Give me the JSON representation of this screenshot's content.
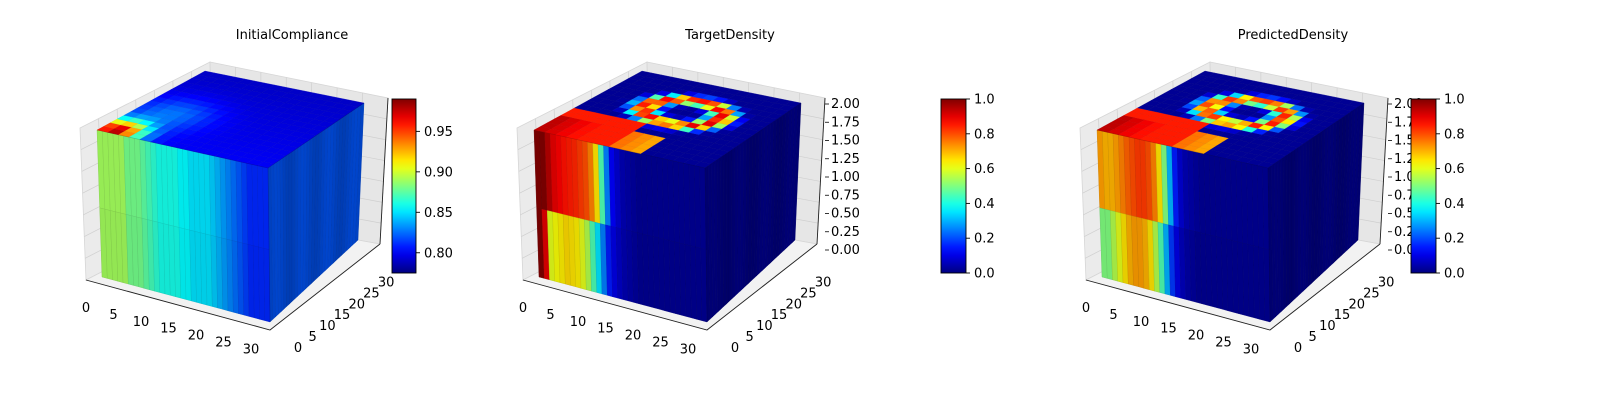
{
  "figure": {
    "panels": [
      {
        "id": "initial-compliance",
        "title": "InitialCompliance",
        "colorbar": {
          "min": 0.775,
          "max": 0.99,
          "ticks": [
            "0.80",
            "0.85",
            "0.90",
            "0.95"
          ],
          "tick_values": [
            0.8,
            0.85,
            0.9,
            0.95
          ]
        },
        "z_ticks_visible": false
      },
      {
        "id": "target-density",
        "title": "TargetDensity",
        "colorbar": {
          "min": 0.0,
          "max": 1.0,
          "ticks": [
            "0.0",
            "0.2",
            "0.4",
            "0.6",
            "0.8",
            "1.0"
          ],
          "tick_values": [
            0,
            0.2,
            0.4,
            0.6,
            0.8,
            1.0
          ]
        },
        "z_ticks_visible": true
      },
      {
        "id": "predicted-density",
        "title": "PredictedDensity",
        "colorbar": {
          "min": 0.0,
          "max": 1.0,
          "ticks": [
            "0.0",
            "0.2",
            "0.4",
            "0.6",
            "0.8",
            "1.0"
          ],
          "tick_values": [
            0,
            0.2,
            0.4,
            0.6,
            0.8,
            1.0
          ]
        },
        "z_ticks_visible": true
      }
    ]
  },
  "chart_data": [
    {
      "type": "heatmap",
      "title": "InitialCompliance",
      "projection": "3d voxel volume",
      "colormap": "jet",
      "x_ticks": [
        "0",
        "5",
        "10",
        "15",
        "20",
        "25",
        "30"
      ],
      "y_ticks": [
        "0",
        "5",
        "10",
        "15",
        "20",
        "25",
        "30"
      ],
      "z_ticks": [],
      "x_range": [
        0,
        32
      ],
      "y_range": [
        0,
        32
      ],
      "colorbar_range": [
        0.775,
        0.99
      ],
      "colorbar_ticks": [
        0.8,
        0.85,
        0.9,
        0.95
      ],
      "front_face_profile_along_x": [
        0.89,
        0.89,
        0.89,
        0.89,
        0.89,
        0.88,
        0.88,
        0.88,
        0.875,
        0.87,
        0.865,
        0.86,
        0.86,
        0.86,
        0.86,
        0.855,
        0.855,
        0.85,
        0.85,
        0.85,
        0.85,
        0.845,
        0.84,
        0.835,
        0.83,
        0.825,
        0.82,
        0.815,
        0.81,
        0.81,
        0.81,
        0.81
      ],
      "top_face_peak": {
        "x": 2,
        "y": 0,
        "value": 0.98
      },
      "side_face_value": 0.82
    },
    {
      "type": "heatmap",
      "title": "TargetDensity",
      "projection": "3d voxel volume",
      "colormap": "jet",
      "x_ticks": [
        "0",
        "5",
        "10",
        "15",
        "20",
        "25",
        "30"
      ],
      "y_ticks": [
        "0",
        "5",
        "10",
        "15",
        "20",
        "25",
        "30"
      ],
      "z_ticks": [
        "0.00",
        "0.25",
        "0.50",
        "0.75",
        "1.00",
        "1.25",
        "1.50",
        "1.75",
        "2.00"
      ],
      "x_range": [
        0,
        32
      ],
      "y_range": [
        0,
        32
      ],
      "z_range": [
        0,
        2
      ],
      "colorbar_range": [
        0,
        1
      ],
      "colorbar_ticks": [
        0,
        0.2,
        0.4,
        0.6,
        0.8,
        1.0
      ],
      "front_face_upper_profile_along_x": [
        1.0,
        1.0,
        0.95,
        0.9,
        0.88,
        0.86,
        0.85,
        0.84,
        0.82,
        0.8,
        0.75,
        0.65,
        0.45,
        0.25,
        0.12,
        0.08,
        0.05,
        0.04,
        0.03,
        0.02,
        0.02,
        0.02,
        0.02,
        0.02,
        0.02,
        0.02,
        0.02,
        0.02,
        0.02,
        0.02,
        0.02,
        0.02
      ],
      "front_face_lower_profile_along_x": [
        1.0,
        0.9,
        0.6,
        0.62,
        0.64,
        0.66,
        0.65,
        0.64,
        0.6,
        0.55,
        0.45,
        0.35,
        0.25,
        0.15,
        0.1,
        0.07,
        0.05,
        0.04,
        0.03,
        0.02,
        0.02,
        0.02,
        0.02,
        0.02,
        0.02,
        0.02,
        0.02,
        0.02,
        0.02,
        0.02,
        0.02,
        0.02
      ],
      "side_face_value": 0.02,
      "top_face_ring_value": 0.9
    },
    {
      "type": "heatmap",
      "title": "PredictedDensity",
      "projection": "3d voxel volume",
      "colormap": "jet",
      "x_ticks": [
        "0",
        "5",
        "10",
        "15",
        "20",
        "25",
        "30"
      ],
      "y_ticks": [
        "0",
        "5",
        "10",
        "15",
        "20",
        "25",
        "30"
      ],
      "z_ticks": [
        "0.00",
        "0.25",
        "0.50",
        "0.75",
        "1.00",
        "1.25",
        "1.50",
        "1.75",
        "2.00"
      ],
      "x_range": [
        0,
        32
      ],
      "y_range": [
        0,
        32
      ],
      "z_range": [
        0,
        2
      ],
      "colorbar_range": [
        0,
        1
      ],
      "colorbar_ticks": [
        0,
        0.2,
        0.4,
        0.6,
        0.8,
        1.0
      ],
      "front_face_upper_profile_along_x": [
        0.72,
        0.7,
        0.7,
        0.72,
        0.75,
        0.78,
        0.8,
        0.82,
        0.82,
        0.8,
        0.75,
        0.65,
        0.5,
        0.3,
        0.15,
        0.08,
        0.05,
        0.04,
        0.03,
        0.02,
        0.02,
        0.02,
        0.02,
        0.02,
        0.02,
        0.02,
        0.02,
        0.02,
        0.02,
        0.02,
        0.02,
        0.02
      ],
      "front_face_lower_profile_along_x": [
        0.5,
        0.5,
        0.55,
        0.6,
        0.65,
        0.7,
        0.72,
        0.72,
        0.7,
        0.65,
        0.55,
        0.45,
        0.3,
        0.18,
        0.1,
        0.06,
        0.04,
        0.03,
        0.02,
        0.02,
        0.02,
        0.02,
        0.02,
        0.02,
        0.02,
        0.02,
        0.02,
        0.02,
        0.02,
        0.02,
        0.02,
        0.02
      ],
      "side_face_value": 0.02,
      "top_face_ring_value": 0.85
    }
  ]
}
